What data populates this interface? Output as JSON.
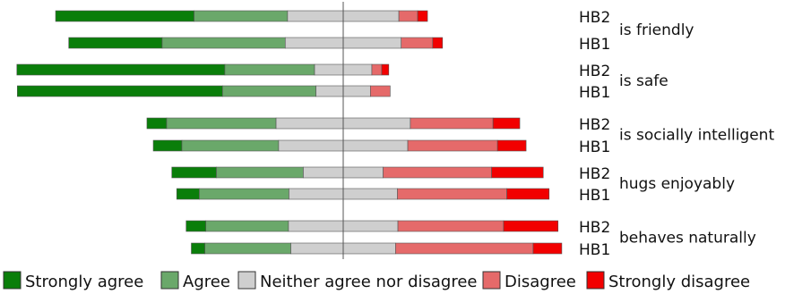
{
  "chart_data": {
    "type": "bar",
    "subtype": "diverging-stacked-horizontal",
    "x_unit": "percent of responses",
    "center_line": "middle of Neither agree nor disagree",
    "categories": [
      "Strongly agree",
      "Agree",
      "Neither agree nor disagree",
      "Disagree",
      "Strongly disagree"
    ],
    "colors": {
      "Strongly agree": "#0a7e0a",
      "Agree": "#6aa86a",
      "Neither agree nor disagree": "#cfcfcf",
      "Disagree": "#e56a6a",
      "Strongly disagree": "#f20000"
    },
    "items": [
      {
        "label": "is friendly",
        "groups": [
          {
            "name": "HB2",
            "values": [
              29.5,
              19.9,
              23.7,
              4.0,
              2.1
            ]
          },
          {
            "name": "HB1",
            "values": [
              19.9,
              26.2,
              24.7,
              6.7,
              2.1
            ]
          }
        ]
      },
      {
        "label": "is safe",
        "groups": [
          {
            "name": "HB2",
            "values": [
              44.3,
              19.1,
              12.2,
              2.1,
              1.5
            ]
          },
          {
            "name": "HB1",
            "values": [
              43.7,
              19.9,
              11.6,
              4.2,
              0.0
            ]
          }
        ]
      },
      {
        "label": "is socially intelligent",
        "groups": [
          {
            "name": "HB2",
            "values": [
              4.2,
              23.3,
              28.6,
              17.6,
              5.7
            ]
          },
          {
            "name": "HB1",
            "values": [
              6.1,
              20.6,
              27.5,
              19.1,
              6.1
            ]
          }
        ]
      },
      {
        "label": "hugs enjoyably",
        "groups": [
          {
            "name": "HB2",
            "values": [
              9.5,
              18.5,
              17.0,
              23.1,
              11.0
            ]
          },
          {
            "name": "HB1",
            "values": [
              4.8,
              19.1,
              23.1,
              23.3,
              9.0
            ]
          }
        ]
      },
      {
        "label": "behaves naturally",
        "groups": [
          {
            "name": "HB2",
            "values": [
              4.2,
              17.6,
              23.3,
              22.5,
              11.6
            ]
          },
          {
            "name": "HB1",
            "values": [
              2.9,
              18.3,
              22.3,
              29.3,
              6.1
            ]
          }
        ]
      }
    ],
    "legend": {
      "position": "bottom",
      "entries": [
        "Strongly agree",
        "Agree",
        "Neither agree nor disagree",
        "Disagree",
        "Strongly disagree"
      ]
    },
    "grid": false
  }
}
